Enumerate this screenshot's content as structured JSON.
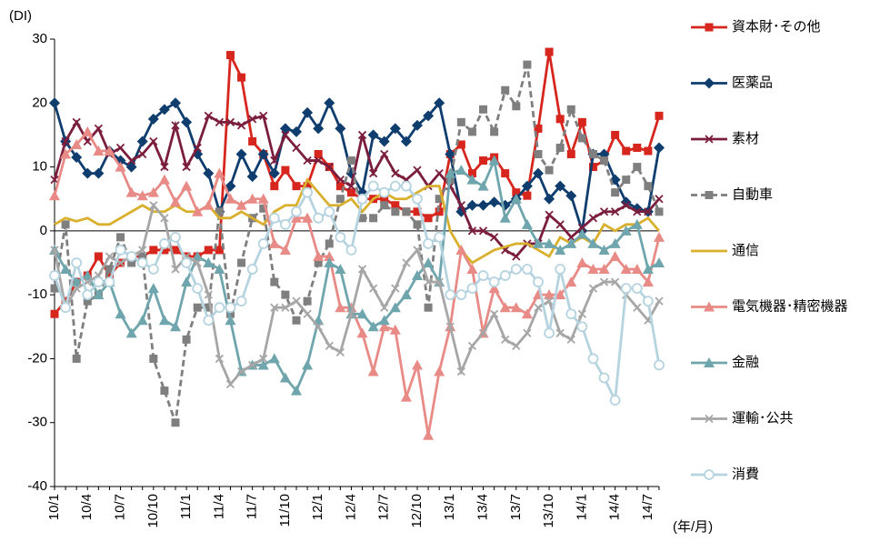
{
  "chart_data": {
    "type": "line",
    "y_label": "(DI)",
    "x_label": "(年/月)",
    "categories": [
      "10/1",
      null,
      null,
      "10/4",
      null,
      null,
      "10/7",
      null,
      null,
      "10/10",
      null,
      null,
      "11/1",
      null,
      null,
      "11/4",
      null,
      null,
      "11/7",
      null,
      null,
      "11/10",
      null,
      null,
      "12/1",
      null,
      null,
      "12/4",
      null,
      null,
      "12/7",
      null,
      null,
      "12/10",
      null,
      null,
      "13/1",
      null,
      null,
      "13/4",
      null,
      null,
      "13/7",
      null,
      null,
      "13/10",
      null,
      null,
      "14/1",
      null,
      null,
      "14/4",
      null,
      null,
      "14/7",
      null
    ],
    "ylim": [
      -40,
      30
    ],
    "yticks": [
      -40,
      -30,
      -20,
      -10,
      0,
      10,
      20,
      30
    ],
    "series": [
      {
        "name": "資本財･その他",
        "color": "#d7261e",
        "marker": "square",
        "values": [
          -13,
          -11,
          -8,
          -7,
          -4,
          -7,
          -5,
          -4,
          -4,
          -3,
          -3,
          -3,
          -4,
          -4,
          -3,
          -3,
          27.5,
          24,
          14,
          12,
          7,
          9.5,
          7,
          7,
          12,
          10,
          7,
          6,
          5,
          5,
          5,
          4,
          3,
          3,
          2,
          3,
          12,
          13.5,
          9,
          11,
          11.5,
          9,
          6,
          5.5,
          16,
          28,
          17.5,
          12,
          17,
          10,
          11,
          15,
          12.5,
          13,
          12.5,
          18
        ]
      },
      {
        "name": "医薬品",
        "color": "#0e3d6e",
        "marker": "diamond",
        "values": [
          20,
          14,
          11.5,
          9,
          9,
          12.5,
          11,
          10,
          14,
          17.5,
          19,
          20,
          17,
          12,
          9,
          3,
          7,
          12,
          8.5,
          12,
          9,
          16,
          15.5,
          18.5,
          16,
          20,
          16,
          9,
          6,
          15,
          14,
          16,
          14,
          16.5,
          18,
          20,
          12,
          3,
          4,
          4,
          4.5,
          4,
          5,
          7,
          9,
          5,
          7,
          5.5,
          0,
          12,
          12,
          8,
          4.5,
          3.5,
          3,
          13
        ]
      },
      {
        "name": "素材",
        "color": "#7b1e3e",
        "marker": "x",
        "values": [
          8,
          14,
          17,
          14,
          16,
          12,
          13,
          11,
          12,
          14,
          10,
          16.5,
          10,
          13,
          18,
          17,
          17,
          16.5,
          17.5,
          18,
          11,
          15,
          13,
          11,
          11,
          10,
          8,
          7,
          15,
          9,
          12,
          9,
          8,
          9.5,
          7,
          9,
          7,
          4,
          0,
          0,
          -1,
          -3,
          -4,
          -2,
          -2,
          2.5,
          1,
          -1,
          0.5,
          2,
          3,
          3,
          4,
          3,
          3,
          5
        ]
      },
      {
        "name": "自動車",
        "color": "#7f7f7f",
        "marker": "square",
        "dashed": true,
        "values": [
          -9,
          1,
          -20,
          -11,
          -10,
          -6,
          -1,
          -5,
          -4,
          -20,
          -25,
          -30,
          -17,
          -12,
          -12,
          3,
          -13,
          -5,
          2,
          3.5,
          -8,
          -10,
          -14,
          -11,
          -5,
          -2,
          5,
          11,
          2,
          2,
          4,
          3,
          3,
          1,
          -12,
          5,
          8,
          17,
          15.5,
          19,
          15.5,
          22,
          19.5,
          26,
          12,
          9.5,
          13,
          19,
          14.5,
          12,
          11,
          6,
          8,
          10,
          7,
          3
        ]
      },
      {
        "name": "通信",
        "color": "#d9b02e",
        "marker": "none",
        "values": [
          1,
          2,
          1.5,
          2,
          1,
          1,
          2,
          3,
          4,
          3,
          3,
          4,
          3,
          3,
          4,
          2,
          2,
          3,
          2,
          1,
          3,
          4,
          4,
          8,
          6,
          4,
          4,
          5,
          3,
          5,
          6,
          5,
          5,
          6,
          7,
          7,
          0,
          -3,
          -5,
          -4,
          -3,
          -2.5,
          -2,
          -2,
          -3,
          -4,
          -1,
          -2,
          -1,
          -2,
          1,
          0,
          1,
          1,
          2,
          0
        ]
      },
      {
        "name": "電気機器･精密機器",
        "color": "#e88a86",
        "marker": "triangle",
        "values": [
          5.5,
          12,
          13.5,
          15.5,
          12.5,
          12.5,
          10,
          6,
          5.5,
          6,
          8,
          4.5,
          7,
          3,
          4,
          9,
          5,
          4,
          5,
          5,
          -2,
          -3,
          2,
          2,
          -4,
          -4,
          -12,
          -12,
          -16,
          -22,
          -15,
          -15.5,
          -26,
          -21,
          -32,
          -22,
          -15,
          -3,
          -6,
          -16,
          -9,
          -12,
          -12,
          -13,
          -10,
          -10,
          -10,
          -8,
          -5,
          -6,
          -6,
          -4,
          -6,
          -6,
          -8,
          -1
        ]
      },
      {
        "name": "金融",
        "color": "#6fa5ac",
        "marker": "triangle",
        "values": [
          -3,
          -6,
          -8,
          -7,
          -10,
          -8,
          -13,
          -16,
          -14,
          -9,
          -14,
          -15,
          -8,
          -4,
          -5,
          -6,
          -14,
          -22,
          -21,
          -21,
          -20,
          -23,
          -25,
          -21,
          -14,
          -5,
          -6,
          -13,
          -13,
          -15,
          -14,
          -12,
          -10,
          -7,
          -5,
          -8,
          9,
          9.5,
          8,
          7,
          11,
          2,
          5,
          1,
          -2,
          -2,
          -3,
          -2,
          -0.5,
          -2,
          -3,
          -2,
          0,
          1,
          -6,
          -5
        ]
      },
      {
        "name": "運輸･公共",
        "color": "#a6a6a6",
        "marker": "x",
        "values": [
          -3,
          -12,
          -9,
          -8,
          -7,
          -4,
          -5,
          -4,
          -3,
          4,
          2,
          -6,
          -4,
          -5,
          -10,
          -20,
          -24,
          -22,
          -21,
          -20,
          -12,
          -12,
          -11,
          -13,
          -15,
          -18,
          -19,
          -13,
          -6,
          -9,
          -12,
          -9,
          -5,
          -3,
          -8,
          -8,
          -15,
          -22,
          -18,
          -16,
          -13,
          -17,
          -18,
          -16,
          -12,
          -11,
          -16,
          -17,
          -13,
          -9,
          -8,
          -8,
          -10,
          -12,
          -14,
          -11
        ]
      },
      {
        "name": "消費",
        "color": "#b6d4df",
        "marker": "circle",
        "values": [
          -7,
          -12,
          -5,
          -10,
          -8,
          -8,
          -3,
          -4,
          -5,
          -6,
          -2,
          -1,
          -5,
          -9,
          -14,
          -12,
          -12,
          -11,
          -6,
          -2,
          2,
          1,
          3,
          6,
          2,
          3,
          -1,
          -3,
          5,
          7,
          6,
          7,
          7,
          5,
          -2,
          -1,
          -10,
          -10,
          -9,
          -7,
          -8,
          -7,
          -6,
          -6,
          -8,
          -16,
          -6,
          -13,
          -15,
          -20,
          -23,
          -26.5,
          -9,
          -9,
          -11,
          -21
        ]
      }
    ]
  }
}
